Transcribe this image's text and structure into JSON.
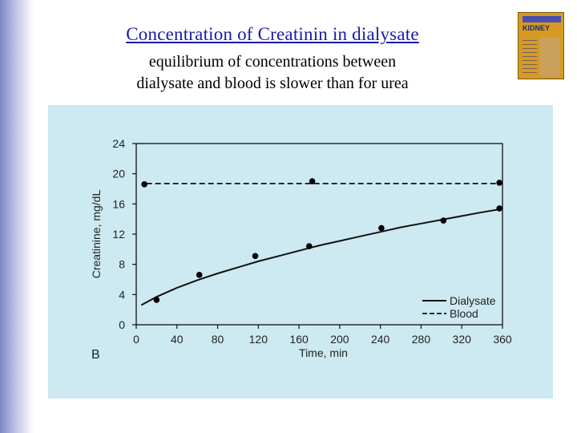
{
  "slide": {
    "title": "Concentration of Creatinin in dialysate",
    "subtitle_lines": [
      "equilibrium of concentrations between",
      "dialysate and blood is slower than for urea"
    ],
    "book_cover_label": "KIDNEY"
  },
  "chart_data": {
    "type": "line",
    "panel_label": "B",
    "xlabel": "Time, min",
    "ylabel": "Creatinine,  mg/dL",
    "xlim": [
      0,
      360
    ],
    "ylim": [
      0,
      24
    ],
    "xticks": [
      0,
      40,
      80,
      120,
      160,
      200,
      240,
      280,
      320,
      360
    ],
    "yticks": [
      0,
      4,
      8,
      12,
      16,
      20,
      24
    ],
    "legend_position": "bottom-right",
    "series": [
      {
        "name": "Dialysate",
        "style": "solid",
        "curve": {
          "x": [
            5,
            20,
            40,
            60,
            80,
            100,
            120,
            140,
            160,
            180,
            200,
            220,
            240,
            260,
            280,
            300,
            320,
            340,
            358
          ],
          "y": [
            2.6,
            3.7,
            4.9,
            5.9,
            6.8,
            7.6,
            8.4,
            9.1,
            9.8,
            10.5,
            11.1,
            11.7,
            12.3,
            12.9,
            13.4,
            13.9,
            14.4,
            14.9,
            15.3
          ]
        },
        "points": {
          "x": [
            20,
            62,
            117,
            170,
            241,
            302,
            357
          ],
          "y": [
            3.3,
            6.6,
            9.1,
            10.4,
            12.8,
            13.8,
            15.4
          ]
        }
      },
      {
        "name": "Blood",
        "style": "dashed",
        "curve": {
          "x": [
            10,
            357
          ],
          "y": [
            18.7,
            18.7
          ]
        },
        "points": {
          "x": [
            8,
            173,
            357
          ],
          "y": [
            18.6,
            19.0,
            18.8
          ]
        }
      }
    ]
  }
}
